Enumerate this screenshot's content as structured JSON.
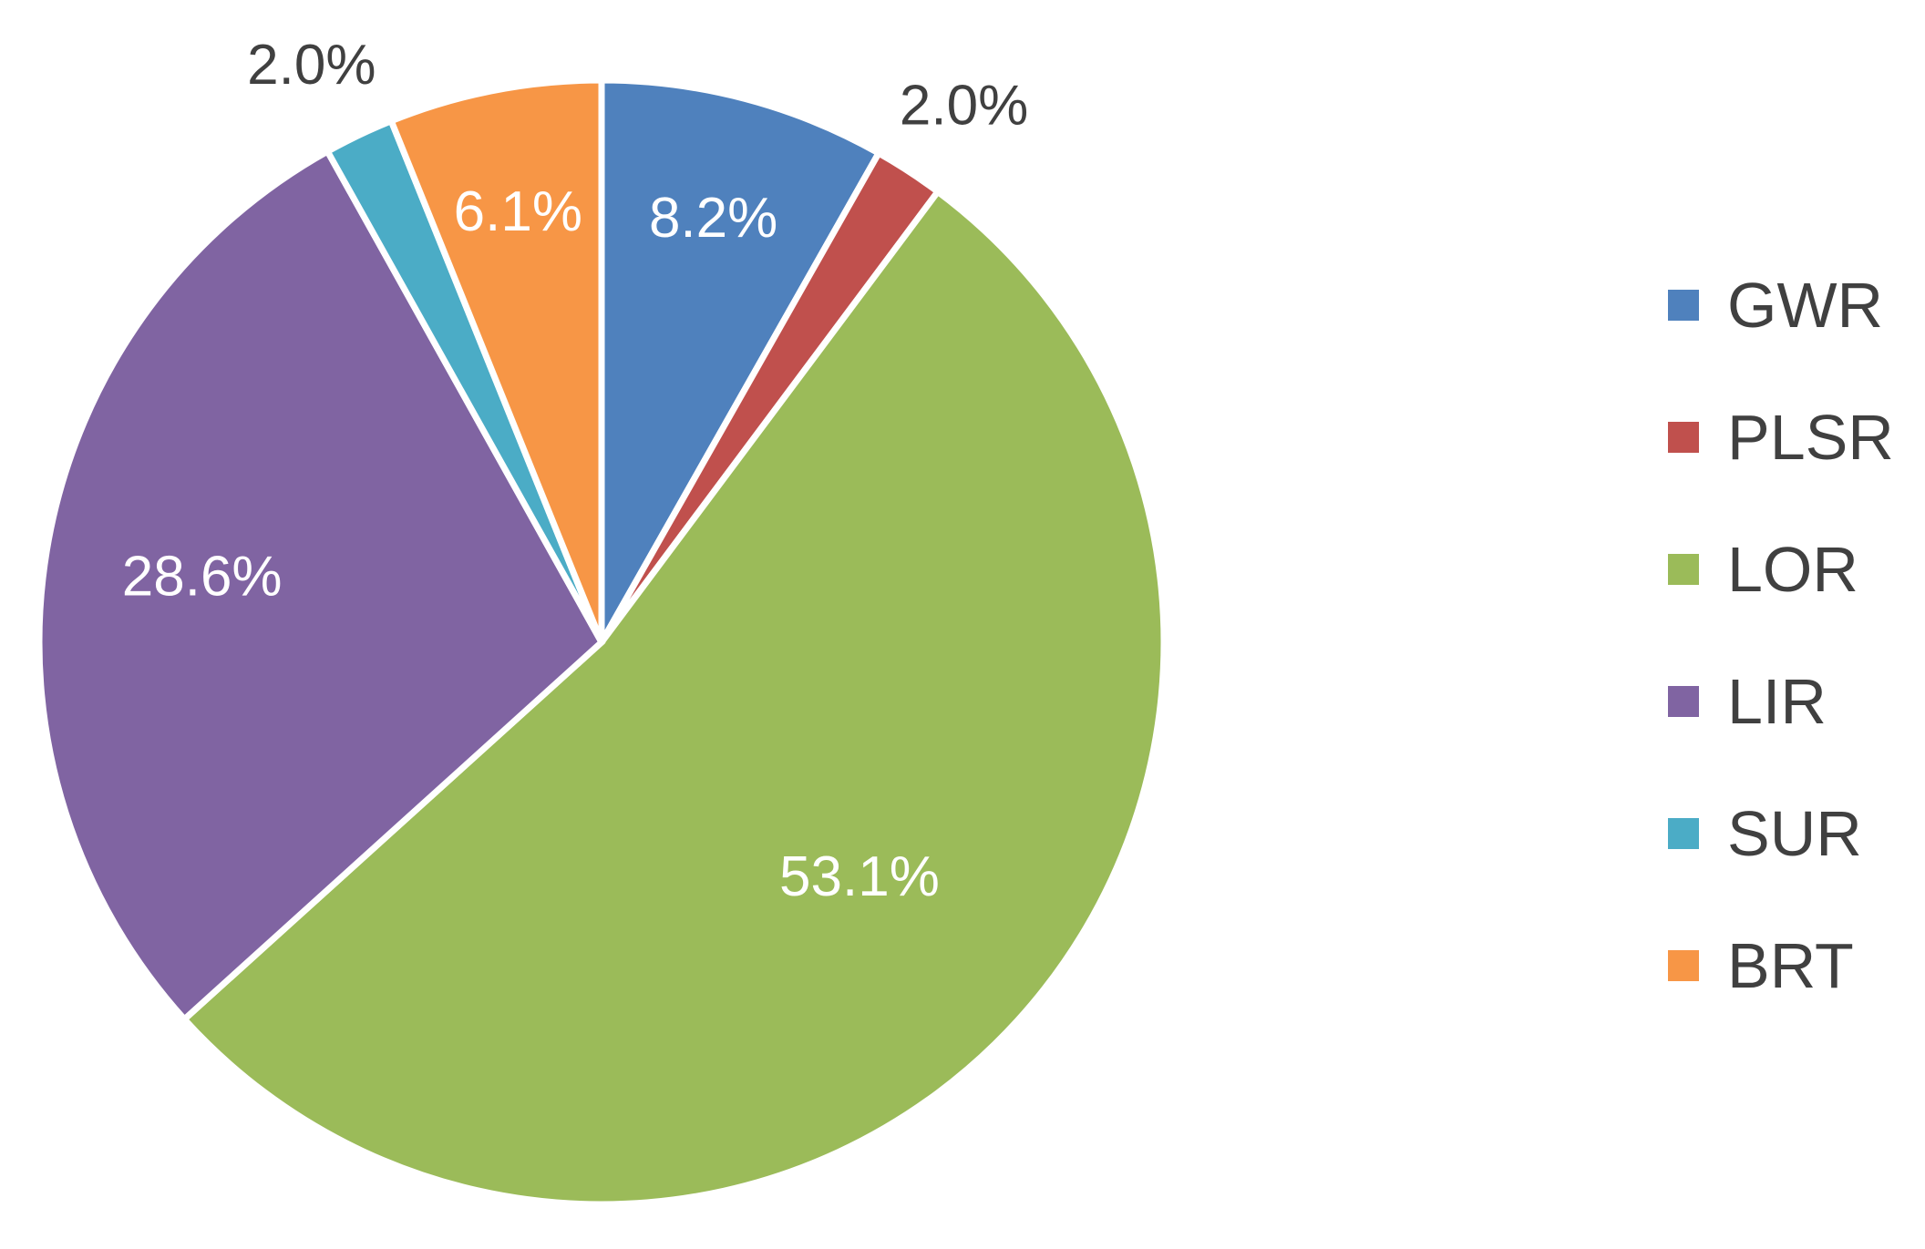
{
  "chart_data": {
    "type": "pie",
    "categories": [
      "GWR",
      "PLSR",
      "LOR",
      "LIR",
      "SUR",
      "BRT"
    ],
    "values": [
      8.2,
      2.0,
      53.1,
      28.6,
      2.0,
      6.1
    ],
    "labels": [
      "8.2%",
      "2.0%",
      "53.1%",
      "28.6%",
      "2.0%",
      "6.1%"
    ],
    "colors": [
      "#4F81BD",
      "#C0504D",
      "#9BBB59",
      "#8064A2",
      "#4BACC6",
      "#F79646"
    ],
    "label_colors": [
      "#ffffff",
      "#404040",
      "#ffffff",
      "#ffffff",
      "#404040",
      "#ffffff"
    ],
    "start_angle_deg": 0,
    "direction": "clockwise",
    "legend_position": "right"
  }
}
